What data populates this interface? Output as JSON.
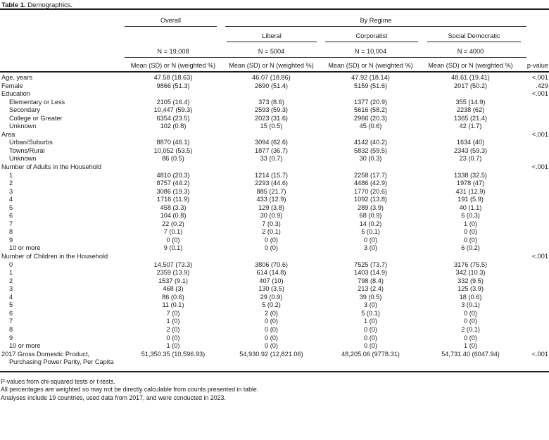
{
  "title": {
    "label": "Table 1.",
    "text": "Demographics."
  },
  "table": {
    "columns": {
      "overall": {
        "group": "Overall",
        "n": "N = 19,008"
      },
      "by_regime_label": "By Regime",
      "regimes": [
        {
          "name": "Liberal",
          "n": "N = 5004"
        },
        {
          "name": "Corporatist",
          "n": "N = 10,004"
        },
        {
          "name": "Social Democratic",
          "n": "N = 4000"
        }
      ],
      "measure_header": "Mean (SD) or N (weighted %)",
      "pvalue_header": "p-value"
    },
    "rows": [
      {
        "label": "Age, years",
        "indent": 0,
        "values": [
          "47.58 (18.63)",
          "46.07 (18.86)",
          "47.92 (18.14)",
          "48.61 (19.41)"
        ],
        "p": "<.001"
      },
      {
        "label": "Female",
        "indent": 0,
        "values": [
          "9866 (51.3)",
          "2690 (51.4)",
          "5159 (51.6)",
          "2017 (50.2)"
        ],
        "p": ".429"
      },
      {
        "label": "Education",
        "indent": 0,
        "values": [
          "",
          "",
          "",
          ""
        ],
        "p": "<.001"
      },
      {
        "label": "Elementary or Less",
        "indent": 1,
        "values": [
          "2105 (16.4)",
          "373 (8.6)",
          "1377 (20.9)",
          "355 (14.9)"
        ],
        "p": ""
      },
      {
        "label": "Secondary",
        "indent": 1,
        "values": [
          "10,447 (59.3)",
          "2593 (59.3)",
          "5616 (58.2)",
          "2238 (62)"
        ],
        "p": ""
      },
      {
        "label": "College or Greater",
        "indent": 1,
        "values": [
          "6354 (23.5)",
          "2023 (31.6)",
          "2966 (20.3)",
          "1365 (21.4)"
        ],
        "p": ""
      },
      {
        "label": "Unknown",
        "indent": 1,
        "values": [
          "102 (0.8)",
          "15 (0.5)",
          "45 (0.6)",
          "42 (1.7)"
        ],
        "p": ""
      },
      {
        "label": "Area",
        "indent": 0,
        "values": [
          "",
          "",
          "",
          ""
        ],
        "p": "<.001"
      },
      {
        "label": "Urban/Suburbs",
        "indent": 1,
        "values": [
          "8870 (46.1)",
          "3094 (62.6)",
          "4142 (40.2)",
          "1634 (40)"
        ],
        "p": ""
      },
      {
        "label": "Towns/Rural",
        "indent": 1,
        "values": [
          "10,052 (53.5)",
          "1877 (36.7)",
          "5832 (59.5)",
          "2343 (59.3)"
        ],
        "p": ""
      },
      {
        "label": "Unknown",
        "indent": 1,
        "values": [
          "86 (0.5)",
          "33 (0.7)",
          "30 (0.3)",
          "23 (0.7)"
        ],
        "p": ""
      },
      {
        "label": "Number of Adults in the Household",
        "indent": 0,
        "values": [
          "",
          "",
          "",
          ""
        ],
        "p": "<.001"
      },
      {
        "label": "1",
        "indent": 1,
        "values": [
          "4810 (20.3)",
          "1214 (15.7)",
          "2258 (17.7)",
          "1338 (32.5)"
        ],
        "p": ""
      },
      {
        "label": "2",
        "indent": 1,
        "values": [
          "8757 (44.2)",
          "2293 (44.6)",
          "4486 (42.9)",
          "1978 (47)"
        ],
        "p": ""
      },
      {
        "label": "3",
        "indent": 1,
        "values": [
          "3086 (19.3)",
          "885 (21.7)",
          "1770 (20.6)",
          "431 (12.9)"
        ],
        "p": ""
      },
      {
        "label": "4",
        "indent": 1,
        "values": [
          "1716 (11.9)",
          "433 (12.9)",
          "1092 (13.8)",
          "191 (5.9)"
        ],
        "p": ""
      },
      {
        "label": "5",
        "indent": 1,
        "values": [
          "458 (3.3)",
          "129 (3.8)",
          "289 (3.9)",
          "40 (1.1)"
        ],
        "p": ""
      },
      {
        "label": "6",
        "indent": 1,
        "values": [
          "104 (0.8)",
          "30 (0.9)",
          "68 (0.9)",
          "6 (0.3)"
        ],
        "p": ""
      },
      {
        "label": "7",
        "indent": 1,
        "values": [
          "22 (0.2)",
          "7 (0.3)",
          "14 (0.2)",
          "1 (0)"
        ],
        "p": ""
      },
      {
        "label": "8",
        "indent": 1,
        "values": [
          "7 (0.1)",
          "2 (0.1)",
          "5 (0.1)",
          "0 (0)"
        ],
        "p": ""
      },
      {
        "label": "9",
        "indent": 1,
        "values": [
          "0 (0)",
          "0 (0)",
          "0 (0)",
          "0 (0)"
        ],
        "p": ""
      },
      {
        "label": "10 or more",
        "indent": 1,
        "values": [
          "9 (0.1)",
          "0 (0)",
          "3 (0)",
          "6 (0.2)"
        ],
        "p": ""
      },
      {
        "label": "Number of Children in the Household",
        "indent": 0,
        "values": [
          "",
          "",
          "",
          ""
        ],
        "p": "<.001"
      },
      {
        "label": "0",
        "indent": 1,
        "values": [
          "14,507 (73.3)",
          "3806 (70.6)",
          "7525 (73.7)",
          "3176 (75.5)"
        ],
        "p": ""
      },
      {
        "label": "1",
        "indent": 1,
        "values": [
          "2359 (13.9)",
          "614 (14.8)",
          "1403 (14.9)",
          "342 (10.3)"
        ],
        "p": ""
      },
      {
        "label": "2",
        "indent": 1,
        "values": [
          "1537 (9.1)",
          "407 (10)",
          "798 (8.4)",
          "332 (9.5)"
        ],
        "p": ""
      },
      {
        "label": "3",
        "indent": 1,
        "values": [
          "468 (3)",
          "130 (3.5)",
          "213 (2.4)",
          "125 (3.9)"
        ],
        "p": ""
      },
      {
        "label": "4",
        "indent": 1,
        "values": [
          "86 (0.6)",
          "29 (0.9)",
          "39 (0.5)",
          "18 (0.6)"
        ],
        "p": ""
      },
      {
        "label": "5",
        "indent": 1,
        "values": [
          "11 (0.1)",
          "5 (0.2)",
          "3 (0)",
          "3 (0.1)"
        ],
        "p": ""
      },
      {
        "label": "6",
        "indent": 1,
        "values": [
          "7 (0)",
          "2 (0)",
          "5 (0.1)",
          "0 (0)"
        ],
        "p": ""
      },
      {
        "label": "7",
        "indent": 1,
        "values": [
          "1 (0)",
          "0 (0)",
          "1 (0)",
          "0 (0)"
        ],
        "p": ""
      },
      {
        "label": "8",
        "indent": 1,
        "values": [
          "2 (0)",
          "0 (0)",
          "0 (0)",
          "2 (0.1)"
        ],
        "p": ""
      },
      {
        "label": "9",
        "indent": 1,
        "values": [
          "0 (0)",
          "0 (0)",
          "0 (0)",
          "0 (0)"
        ],
        "p": ""
      },
      {
        "label": "10 or more",
        "indent": 1,
        "values": [
          "1 (0)",
          "0 (0)",
          "0 (0)",
          "1 (0)"
        ],
        "p": ""
      },
      {
        "label": "2017 Gross Domestic Product,",
        "label2": "Purchasing Power Parity, Per Capita",
        "indent": 0,
        "values": [
          "51,350.35 (10,596.93)",
          "54,930.92 (12,821.06)",
          "48,205.06 (9778.31)",
          "54,731.40 (6047.94)"
        ],
        "p": "<.001"
      }
    ],
    "footnotes": [
      "P-values from chi-squared tests or t-tests.",
      "All percentages are weighted so may not be directly calculable from counts presented in table.",
      "Analyses include 19 countries, used data from 2017, and were conducted in 2023."
    ]
  }
}
